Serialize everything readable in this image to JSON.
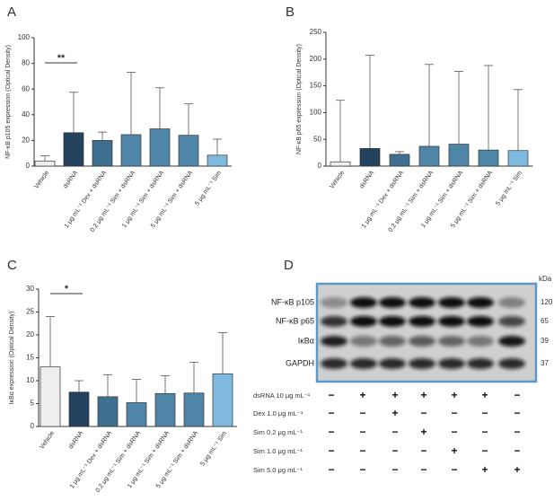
{
  "chart_data": [
    {
      "type": "bar",
      "label": "A",
      "ylabel": "NF-κB p105 expression (Optical Density)",
      "categories": [
        "Vehicle",
        "dsRNA",
        "1 μg mL⁻¹ Dex + dsRNA",
        "0.2 μg mL⁻¹ Sim + dsRNA",
        "1 μg mL⁻¹ Sim + dsRNA",
        "5 μg mL⁻¹ Sim + dsRNA",
        "5 μg mL⁻¹ Sim"
      ],
      "values": [
        4,
        26,
        20,
        24.5,
        29,
        24,
        8.5
      ],
      "errors": [
        4,
        31.5,
        6.5,
        48.5,
        32,
        24.5,
        12.5
      ],
      "colors": [
        "#eeeeee",
        "#24425e",
        "#3f6f8f",
        "#4f86a8",
        "#4f86a8",
        "#4f86a8",
        "#7fb9e0"
      ],
      "ylim": [
        0,
        100
      ],
      "yticks": [
        0,
        20,
        40,
        60,
        80,
        100
      ],
      "annotations": [
        "**"
      ]
    },
    {
      "type": "bar",
      "label": "B",
      "ylabel": "NF-κB p65 expression (Optical Density)",
      "categories": [
        "Vehicle",
        "dsRNA",
        "1 μg mL⁻¹ Dex + dsRNA",
        "0.2 μg mL⁻¹ Sim + dsRNA",
        "1 μg mL⁻¹ Sim + dsRNA",
        "5 μg mL⁻¹ Sim + dsRNA",
        "5 μg mL⁻¹ Sim"
      ],
      "values": [
        8,
        33,
        22,
        37,
        41,
        30,
        29
      ],
      "errors": [
        115,
        174,
        5,
        153,
        136,
        158,
        114
      ],
      "colors": [
        "#eeeeee",
        "#24425e",
        "#3f6f8f",
        "#4f86a8",
        "#4f86a8",
        "#4f86a8",
        "#7fb9e0"
      ],
      "ylim": [
        0,
        250
      ],
      "yticks": [
        0,
        50,
        100,
        150,
        200,
        250
      ],
      "annotations": []
    },
    {
      "type": "bar",
      "label": "C",
      "ylabel": "IκBα expression (Optical Density)",
      "categories": [
        "Vehicle",
        "dsRNA",
        "1 μg mL⁻¹ Dex + dsRNA",
        "0.2 μg mL⁻¹ Sim + dsRNA",
        "1 μg mL⁻¹ Sim + dsRNA",
        "5 μg mL⁻¹ Sim + dsRNA",
        "5 μg mL⁻¹ Sim"
      ],
      "values": [
        13,
        7.5,
        6.5,
        5.2,
        7.2,
        7.3,
        11.5
      ],
      "errors": [
        11,
        2.5,
        4.8,
        5.1,
        3.9,
        6.7,
        9
      ],
      "colors": [
        "#eeeeee",
        "#24425e",
        "#3f6f8f",
        "#4f86a8",
        "#4f86a8",
        "#4f86a8",
        "#7fb9e0"
      ],
      "ylim": [
        0,
        30
      ],
      "yticks": [
        0,
        5,
        10,
        15,
        20,
        25,
        30
      ],
      "annotations": [
        "*"
      ]
    }
  ],
  "blot": {
    "label": "D",
    "unit": "kDa",
    "bands": [
      {
        "name": "NF-κB p105",
        "kda": "120"
      },
      {
        "name": "NF-κB p65",
        "kda": "65"
      },
      {
        "name": "IκBα",
        "kda": "39"
      },
      {
        "name": "GAPDH",
        "kda": "37"
      }
    ],
    "rows": [
      {
        "name": "dsRNA 10 μg mL⁻¹",
        "signs": [
          "−",
          "+",
          "+",
          "+",
          "+",
          "+",
          "−"
        ]
      },
      {
        "name": "Dex 1.0 μg mL⁻¹",
        "signs": [
          "−",
          "−",
          "+",
          "−",
          "−",
          "−",
          "−"
        ]
      },
      {
        "name": "Sim 0.2 μg mL⁻¹",
        "signs": [
          "−",
          "−",
          "−",
          "+",
          "−",
          "−",
          "−"
        ]
      },
      {
        "name": "Sim 1.0 μg mL⁻¹",
        "signs": [
          "−",
          "−",
          "−",
          "−",
          "+",
          "−",
          "−"
        ]
      },
      {
        "name": "Sim 5.0 μg mL⁻¹",
        "signs": [
          "−",
          "−",
          "−",
          "−",
          "−",
          "+",
          "+"
        ]
      }
    ]
  }
}
